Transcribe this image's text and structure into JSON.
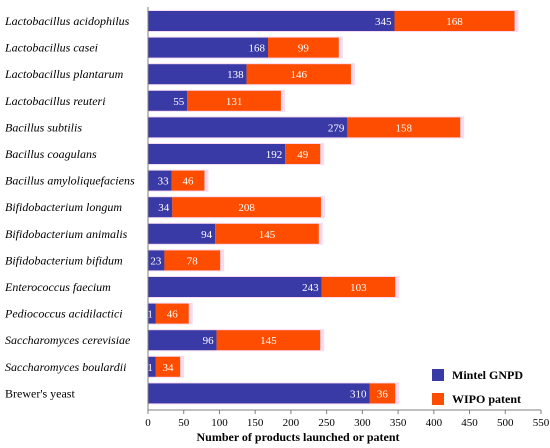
{
  "chart_data": {
    "type": "bar",
    "orientation": "horizontal",
    "stacked": true,
    "categories": [
      "Lactobacillus acidophilus",
      "Lactobacillus casei",
      "Lactobacillus plantarum",
      "Lactobacillus reuteri",
      "Bacillus subtilis",
      "Bacillus coagulans",
      "Bacillus amyloliquefaciens",
      "Bifidobacterium longum",
      "Bifidobacterium animalis",
      "Bifidobacterium bifidum",
      "Enterococcus faecium",
      "Pediococcus acidilactici",
      "Saccharomyces cerevisiae",
      "Saccharomyces boulardii",
      "Brewer's yeast"
    ],
    "category_italic": [
      true,
      true,
      true,
      true,
      true,
      true,
      true,
      true,
      true,
      true,
      true,
      true,
      true,
      true,
      false
    ],
    "series": [
      {
        "name": "Mintel GNPD",
        "color": "#3a3aa6",
        "values": [
          345,
          168,
          138,
          55,
          279,
          192,
          33,
          34,
          94,
          23,
          243,
          11,
          96,
          11,
          310
        ]
      },
      {
        "name": "WIPO patent",
        "color": "#ff4d00",
        "values": [
          168,
          99,
          146,
          131,
          158,
          49,
          46,
          208,
          145,
          78,
          103,
          46,
          145,
          34,
          36
        ]
      }
    ],
    "xlabel": "Number of products launched or patent",
    "xlim": [
      0,
      550
    ],
    "xticks": [
      0,
      50,
      100,
      150,
      200,
      250,
      300,
      350,
      400,
      450,
      500,
      550
    ],
    "grid": false,
    "legend_position": "bottom-right"
  }
}
